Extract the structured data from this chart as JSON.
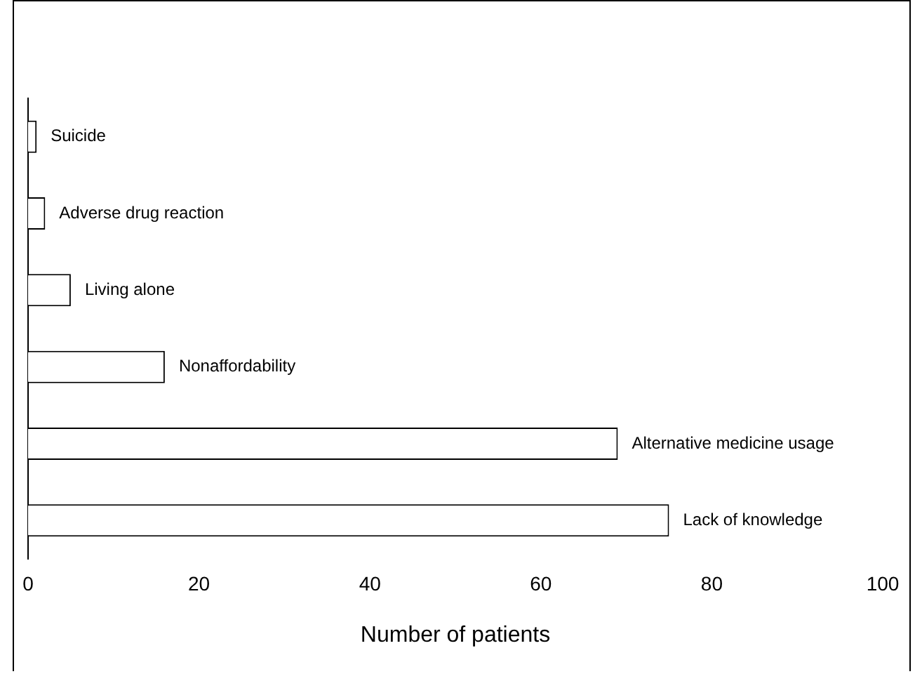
{
  "chart_data": {
    "type": "bar",
    "orientation": "horizontal",
    "xlabel": "Number of patients",
    "categories": [
      "Suicide",
      "Adverse drug reaction",
      "Living alone",
      "Nonaffordability",
      "Alternative medicine usage",
      "Lack of knowledge"
    ],
    "values": [
      1,
      2,
      5,
      16,
      69,
      75
    ],
    "color": "#ffffff",
    "xlim": [
      0,
      100
    ],
    "xticks": [
      0,
      20,
      40,
      60,
      80,
      100
    ],
    "grid": false,
    "legend": false
  }
}
